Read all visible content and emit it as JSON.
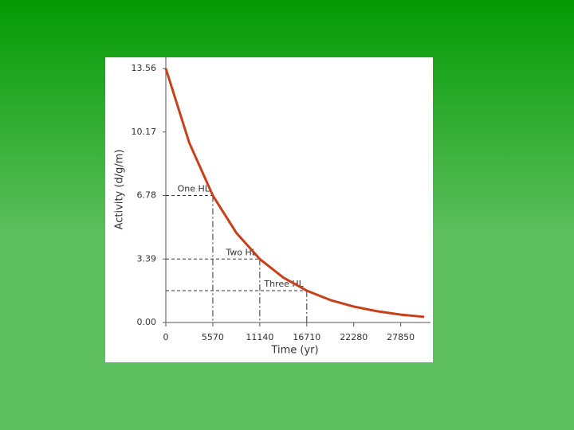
{
  "chart_data": {
    "type": "line",
    "y_label": "Activity (d/g/m)",
    "x_label": "Time (yr)",
    "x": [
      0,
      2785,
      5570,
      8355,
      11140,
      13925,
      16710,
      19495,
      22280,
      25065,
      27850,
      30635
    ],
    "series": [
      {
        "color": "#c8401a",
        "values": [
          13.56,
          9.59,
          6.78,
          4.79,
          3.39,
          2.4,
          1.7,
          1.2,
          0.85,
          0.6,
          0.42,
          0.3
        ]
      }
    ],
    "xlim": [
      0,
      31000
    ],
    "ylim": [
      0,
      14.2
    ],
    "xticks": [
      0,
      5570,
      11140,
      16710,
      22280,
      27850
    ],
    "yticks": [
      {
        "value": 0,
        "label": "0.00"
      },
      3.39,
      6.78,
      10.17,
      13.56
    ],
    "annotations": [
      {
        "text": "One HL",
        "x": 5570,
        "y": 6.78
      },
      {
        "text": "Two HL",
        "x": 11140,
        "y": 3.39
      },
      {
        "text": "Three HL",
        "x": 16710,
        "y": 1.7
      }
    ]
  }
}
